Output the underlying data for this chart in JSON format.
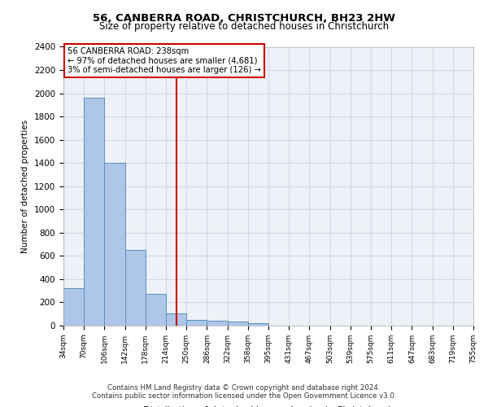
{
  "title": "56, CANBERRA ROAD, CHRISTCHURCH, BH23 2HW",
  "subtitle": "Size of property relative to detached houses in Christchurch",
  "xlabel": "Distribution of detached houses by size in Christchurch",
  "ylabel": "Number of detached properties",
  "footer_line1": "Contains HM Land Registry data © Crown copyright and database right 2024.",
  "footer_line2": "Contains public sector information licensed under the Open Government Licence v3.0.",
  "bin_labels": [
    "34sqm",
    "70sqm",
    "106sqm",
    "142sqm",
    "178sqm",
    "214sqm",
    "250sqm",
    "286sqm",
    "322sqm",
    "358sqm",
    "395sqm",
    "431sqm",
    "467sqm",
    "503sqm",
    "539sqm",
    "575sqm",
    "611sqm",
    "647sqm",
    "683sqm",
    "719sqm",
    "755sqm"
  ],
  "bar_values": [
    325,
    1960,
    1400,
    650,
    275,
    105,
    50,
    40,
    37,
    20,
    0,
    0,
    0,
    0,
    0,
    0,
    0,
    0,
    0,
    0
  ],
  "bar_color": "#aec6e8",
  "bar_edge_color": "#5a8fc0",
  "property_line_x": 5.5,
  "annotation_text1": "56 CANBERRA ROAD: 238sqm",
  "annotation_text2": "← 97% of detached houses are smaller (4,681)",
  "annotation_text3": "3% of semi-detached houses are larger (126) →",
  "annotation_box_color": "#ffffff",
  "annotation_box_edge": "#cc0000",
  "vline_color": "#cc0000",
  "ylim": [
    0,
    2400
  ],
  "yticks": [
    0,
    200,
    400,
    600,
    800,
    1000,
    1200,
    1400,
    1600,
    1800,
    2000,
    2200,
    2400
  ],
  "grid_color": "#d0d8e8",
  "bg_color": "#eef2f8"
}
